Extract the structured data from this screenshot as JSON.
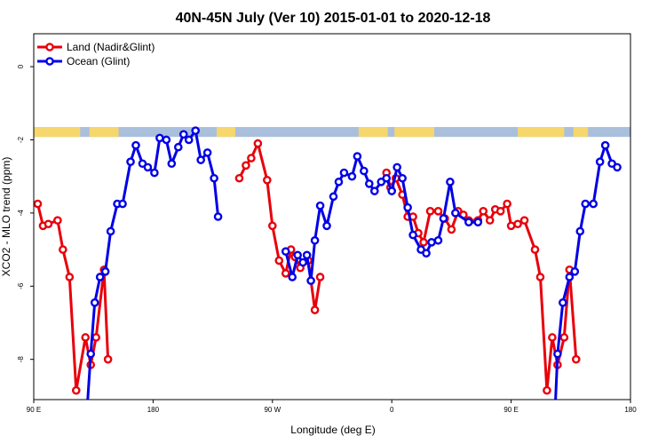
{
  "chart_data": {
    "type": "line",
    "title": "40N-45N July (Ver 10)   2015-01-01 to 2020-12-18",
    "xlabel": "Longitude (deg E)",
    "ylabel": "XCO2 - MLO trend (ppm)",
    "xlim": [
      90,
      540
    ],
    "ylim": [
      -9.1,
      0.9
    ],
    "x_ticks": [
      {
        "value": 90,
        "label": "90 E"
      },
      {
        "value": 180,
        "label": "180"
      },
      {
        "value": 270,
        "label": "90 W"
      },
      {
        "value": 360,
        "label": "0"
      },
      {
        "value": 450,
        "label": "90 E"
      },
      {
        "value": 540,
        "label": "180"
      }
    ],
    "y_ticks": [
      {
        "value": 0,
        "label": "0"
      },
      {
        "value": -2,
        "label": "-2"
      },
      {
        "value": -4,
        "label": "-4"
      },
      {
        "value": -6,
        "label": "-6"
      },
      {
        "value": -8,
        "label": "-8"
      }
    ],
    "legend_position": "top-left",
    "land_ocean_band": {
      "y_top": -1.65,
      "y_bottom": -1.92,
      "land_color": "#f5d76e",
      "ocean_color": "#a9bfdc"
    },
    "series": [
      {
        "name": "Land (Nadir&Glint)",
        "color": "#e8000b",
        "segments": [
          [
            [
              93,
              -3.75
            ],
            [
              97,
              -4.35
            ],
            [
              101,
              -4.3
            ],
            [
              108,
              -4.2
            ],
            [
              112,
              -5.0
            ],
            [
              117,
              -5.75
            ],
            [
              122,
              -8.85
            ],
            [
              129,
              -7.4
            ],
            [
              133,
              -8.15
            ],
            [
              137,
              -7.4
            ],
            [
              143,
              -5.55
            ],
            [
              146,
              -8.0
            ]
          ],
          [
            [
              245,
              -3.05
            ],
            [
              250,
              -2.7
            ],
            [
              254,
              -2.5
            ],
            [
              259,
              -2.1
            ],
            [
              266,
              -3.1
            ],
            [
              270,
              -4.35
            ],
            [
              275,
              -5.3
            ],
            [
              280,
              -5.65
            ],
            [
              284,
              -5.0
            ],
            [
              287,
              -5.2
            ],
            [
              291,
              -5.5
            ],
            [
              297,
              -5.3
            ],
            [
              302,
              -6.65
            ],
            [
              306,
              -5.75
            ]
          ],
          [
            [
              356,
              -2.9
            ],
            [
              359,
              -3.3
            ],
            [
              363,
              -3.05
            ],
            [
              368,
              -3.5
            ],
            [
              372,
              -4.1
            ],
            [
              376,
              -4.1
            ],
            [
              380,
              -4.55
            ],
            [
              384,
              -4.8
            ],
            [
              389,
              -3.95
            ],
            [
              395,
              -3.95
            ],
            [
              400,
              -4.15
            ],
            [
              405,
              -4.45
            ],
            [
              410,
              -3.95
            ],
            [
              414,
              -4.05
            ],
            [
              418,
              -4.2
            ],
            [
              425,
              -4.2
            ],
            [
              429,
              -3.95
            ],
            [
              434,
              -4.2
            ],
            [
              438,
              -3.9
            ],
            [
              442,
              -3.95
            ],
            [
              447,
              -3.75
            ],
            [
              450,
              -4.35
            ],
            [
              455,
              -4.3
            ],
            [
              460,
              -4.2
            ],
            [
              468,
              -5.0
            ],
            [
              472,
              -5.75
            ],
            [
              477,
              -8.85
            ],
            [
              481,
              -7.4
            ],
            [
              485,
              -8.15
            ],
            [
              490,
              -7.4
            ],
            [
              494,
              -5.55
            ],
            [
              499,
              -8.0
            ]
          ]
        ]
      },
      {
        "name": "Ocean (Glint)",
        "color": "#0000e6",
        "segments": [
          [
            [
              130,
              -9.5
            ],
            [
              133,
              -7.85
            ],
            [
              136,
              -6.45
            ],
            [
              140,
              -5.75
            ],
            [
              144,
              -5.6
            ],
            [
              148,
              -4.5
            ],
            [
              153,
              -3.75
            ],
            [
              157,
              -3.75
            ],
            [
              163,
              -2.6
            ],
            [
              167,
              -2.15
            ],
            [
              172,
              -2.65
            ],
            [
              176,
              -2.75
            ],
            [
              181,
              -2.9
            ],
            [
              185,
              -1.95
            ],
            [
              190,
              -2.0
            ],
            [
              194,
              -2.65
            ],
            [
              199,
              -2.2
            ],
            [
              203,
              -1.85
            ],
            [
              207,
              -2.0
            ],
            [
              212,
              -1.75
            ],
            [
              216,
              -2.55
            ],
            [
              221,
              -2.35
            ],
            [
              226,
              -3.05
            ],
            [
              229,
              -4.1
            ]
          ],
          [
            [
              280,
              -5.05
            ],
            [
              285,
              -5.75
            ],
            [
              289,
              -5.15
            ],
            [
              293,
              -5.35
            ],
            [
              296,
              -5.15
            ],
            [
              299,
              -5.85
            ],
            [
              302,
              -4.75
            ],
            [
              306,
              -3.8
            ],
            [
              311,
              -4.35
            ],
            [
              316,
              -3.55
            ],
            [
              320,
              -3.15
            ],
            [
              324,
              -2.9
            ],
            [
              330,
              -3.0
            ],
            [
              334,
              -2.45
            ],
            [
              339,
              -2.85
            ],
            [
              343,
              -3.2
            ],
            [
              347,
              -3.4
            ],
            [
              352,
              -3.15
            ],
            [
              356,
              -3.05
            ],
            [
              360,
              -3.4
            ],
            [
              364,
              -2.75
            ],
            [
              368,
              -3.05
            ],
            [
              372,
              -3.85
            ],
            [
              376,
              -4.6
            ],
            [
              382,
              -5.0
            ],
            [
              386,
              -5.1
            ],
            [
              390,
              -4.8
            ],
            [
              395,
              -4.75
            ],
            [
              399,
              -4.15
            ],
            [
              404,
              -3.15
            ],
            [
              408,
              -4.0
            ],
            [
              418,
              -4.25
            ],
            [
              425,
              -4.25
            ]
          ],
          [
            [
              483,
              -9.5
            ],
            [
              485,
              -7.85
            ],
            [
              489,
              -6.45
            ],
            [
              494,
              -5.75
            ],
            [
              498,
              -5.6
            ],
            [
              502,
              -4.5
            ],
            [
              506,
              -3.75
            ],
            [
              512,
              -3.75
            ],
            [
              517,
              -2.6
            ],
            [
              521,
              -2.15
            ],
            [
              526,
              -2.65
            ],
            [
              530,
              -2.75
            ]
          ]
        ]
      }
    ]
  }
}
